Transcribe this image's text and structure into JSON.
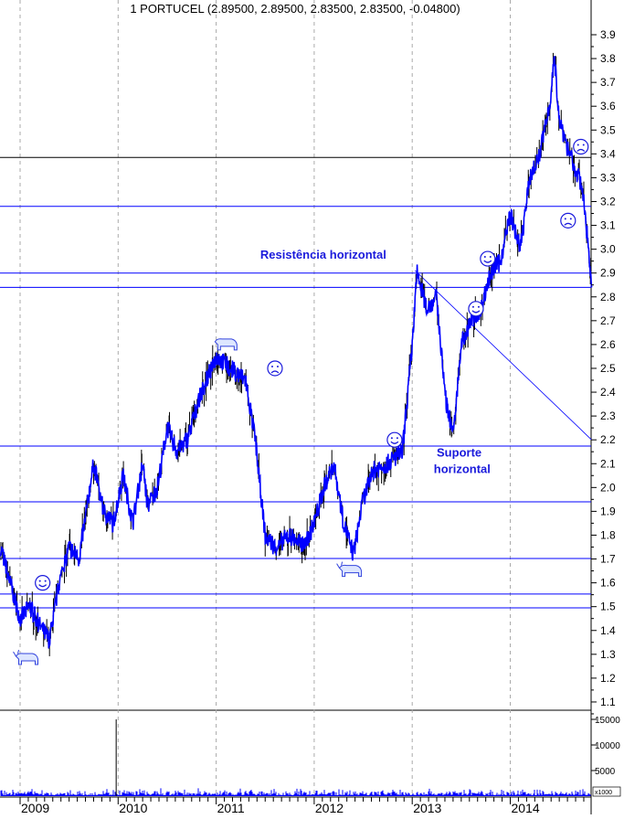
{
  "chart_data": {
    "type": "line",
    "title": "1 PORTUCEL (2.89500, 2.89500, 2.83500, 2.83500, -0.04800)",
    "x_tick_labels": [
      "2009",
      "2010",
      "2011",
      "2012",
      "2013",
      "2014"
    ],
    "y_ticks": [
      1.1,
      1.2,
      1.3,
      1.4,
      1.5,
      1.6,
      1.7,
      1.8,
      1.9,
      2.0,
      2.1,
      2.2,
      2.3,
      2.4,
      2.5,
      2.6,
      2.7,
      2.8,
      2.9,
      3.0,
      3.1,
      3.2,
      3.3,
      3.4,
      3.5,
      3.6,
      3.7,
      3.8,
      3.9
    ],
    "ylim": [
      1.07,
      3.97
    ],
    "xlim": [
      2008.8,
      2014.83
    ],
    "grid": "vertical dashed at years",
    "series_color": "#0000ff",
    "price_keypoints": [
      [
        2008.8,
        1.75
      ],
      [
        2008.9,
        1.6
      ],
      [
        2009.0,
        1.45
      ],
      [
        2009.1,
        1.5
      ],
      [
        2009.2,
        1.42
      ],
      [
        2009.3,
        1.36
      ],
      [
        2009.4,
        1.6
      ],
      [
        2009.5,
        1.75
      ],
      [
        2009.6,
        1.7
      ],
      [
        2009.75,
        2.1
      ],
      [
        2009.85,
        1.9
      ],
      [
        2009.95,
        1.85
      ],
      [
        2010.05,
        2.05
      ],
      [
        2010.15,
        1.85
      ],
      [
        2010.25,
        2.1
      ],
      [
        2010.3,
        1.92
      ],
      [
        2010.4,
        2.0
      ],
      [
        2010.5,
        2.25
      ],
      [
        2010.6,
        2.15
      ],
      [
        2010.7,
        2.2
      ],
      [
        2010.85,
        2.4
      ],
      [
        2011.0,
        2.55
      ],
      [
        2011.15,
        2.5
      ],
      [
        2011.3,
        2.45
      ],
      [
        2011.4,
        2.2
      ],
      [
        2011.5,
        1.8
      ],
      [
        2011.6,
        1.75
      ],
      [
        2011.75,
        1.8
      ],
      [
        2011.9,
        1.75
      ],
      [
        2012.0,
        1.85
      ],
      [
        2012.1,
        2.0
      ],
      [
        2012.2,
        2.1
      ],
      [
        2012.3,
        1.85
      ],
      [
        2012.4,
        1.72
      ],
      [
        2012.5,
        1.95
      ],
      [
        2012.6,
        2.07
      ],
      [
        2012.75,
        2.1
      ],
      [
        2012.9,
        2.15
      ],
      [
        2013.0,
        2.6
      ],
      [
        2013.05,
        2.9
      ],
      [
        2013.15,
        2.75
      ],
      [
        2013.25,
        2.8
      ],
      [
        2013.3,
        2.55
      ],
      [
        2013.35,
        2.35
      ],
      [
        2013.42,
        2.22
      ],
      [
        2013.5,
        2.6
      ],
      [
        2013.6,
        2.7
      ],
      [
        2013.7,
        2.75
      ],
      [
        2013.8,
        2.9
      ],
      [
        2013.9,
        2.95
      ],
      [
        2014.0,
        3.15
      ],
      [
        2014.1,
        3.0
      ],
      [
        2014.2,
        3.3
      ],
      [
        2014.3,
        3.4
      ],
      [
        2014.4,
        3.6
      ],
      [
        2014.45,
        3.8
      ],
      [
        2014.5,
        3.55
      ],
      [
        2014.6,
        3.4
      ],
      [
        2014.7,
        3.3
      ],
      [
        2014.75,
        3.2
      ],
      [
        2014.8,
        3.0
      ],
      [
        2014.83,
        2.84
      ]
    ],
    "horizontal_lines": [
      {
        "value": 3.385,
        "color": "#000000"
      },
      {
        "value": 3.18,
        "color": "#0000ff"
      },
      {
        "value": 2.9,
        "color": "#0000ff"
      },
      {
        "value": 2.84,
        "color": "#0000ff"
      },
      {
        "value": 2.174,
        "color": "#0000ff"
      },
      {
        "value": 1.94,
        "color": "#0000ff"
      },
      {
        "value": 1.702,
        "color": "#0000ff"
      },
      {
        "value": 1.553,
        "color": "#0000ff"
      },
      {
        "value": 1.495,
        "color": "#0000ff"
      }
    ],
    "trendline": {
      "from": [
        2013.03,
        2.91
      ],
      "to": [
        2014.83,
        2.2
      ],
      "color": "#0000ff"
    },
    "annotations": [
      {
        "text": "Resistência horizontal",
        "at": [
          2011.45,
          2.96
        ]
      },
      {
        "text": "Suporte",
        "at": [
          2013.25,
          2.13
        ]
      },
      {
        "text": "horizontal",
        "at": [
          2013.22,
          2.06
        ]
      }
    ],
    "icons": [
      {
        "icon": "smiley-icon",
        "at": [
          2009.23,
          1.6
        ]
      },
      {
        "icon": "smiley-icon",
        "at": [
          2012.82,
          2.2
        ]
      },
      {
        "icon": "smiley-icon",
        "at": [
          2013.65,
          2.75
        ]
      },
      {
        "icon": "smiley-icon",
        "at": [
          2013.77,
          2.96
        ]
      },
      {
        "icon": "frown-icon",
        "at": [
          2011.6,
          2.5
        ]
      },
      {
        "icon": "frown-icon",
        "at": [
          2014.59,
          3.12
        ]
      },
      {
        "icon": "frown-icon",
        "at": [
          2014.72,
          3.43
        ]
      },
      {
        "icon": "bear-icon",
        "at": [
          2011.1,
          2.6
        ]
      },
      {
        "icon": "bull-icon",
        "at": [
          2009.07,
          1.28
        ]
      },
      {
        "icon": "bull-icon",
        "at": [
          2012.37,
          1.65
        ]
      }
    ],
    "volume": {
      "y_ticks": [
        5000,
        10000,
        15000
      ],
      "unit_label": "x1000",
      "ylim": [
        0,
        16000
      ],
      "spike": {
        "x": 2009.98,
        "value": 15000
      }
    }
  }
}
